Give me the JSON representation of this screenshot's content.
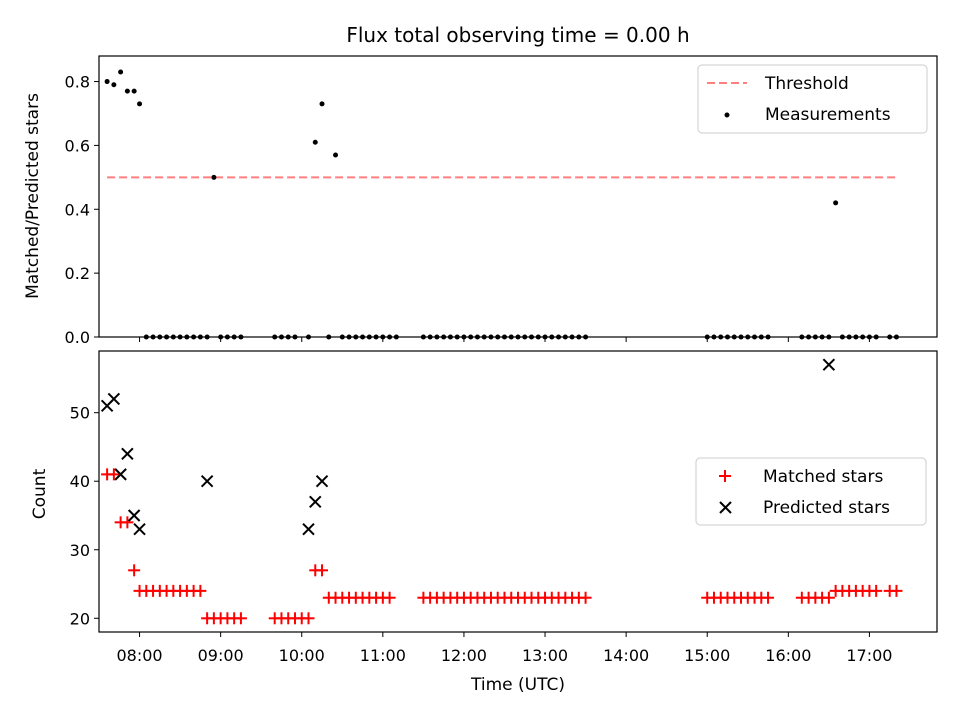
{
  "chart_data": [
    {
      "type": "scatter",
      "title": "Flux total observing time = 0.00 h",
      "xlabel": "",
      "ylabel": "Matched/Predicted stars",
      "xlim": [
        "07:30",
        "17:50"
      ],
      "ylim": [
        0,
        0.88
      ],
      "yticks": [
        "0.0",
        "0.2",
        "0.4",
        "0.6",
        "0.8"
      ],
      "legend_position": "top-right",
      "threshold": {
        "name": "Threshold",
        "value": 0.5,
        "x_start": "07:36",
        "x_end": "17:20",
        "color": "#ff7f7f",
        "style": "dashed"
      },
      "series": [
        {
          "name": "Measurements",
          "color": "#000000",
          "marker": "dot",
          "x": [
            "07:36",
            "07:41",
            "07:46",
            "07:51",
            "07:56",
            "08:00",
            "08:05",
            "08:10",
            "08:15",
            "08:20",
            "08:25",
            "08:30",
            "08:35",
            "08:40",
            "08:45",
            "08:50",
            "08:55",
            "09:00",
            "09:05",
            "09:10",
            "09:15",
            "09:40",
            "09:45",
            "09:50",
            "09:55",
            "10:05",
            "10:10",
            "10:15",
            "10:20",
            "10:25",
            "10:30",
            "10:35",
            "10:40",
            "10:45",
            "10:50",
            "10:55",
            "11:00",
            "11:05",
            "11:10",
            "11:30",
            "11:35",
            "11:40",
            "11:45",
            "11:50",
            "11:55",
            "12:00",
            "12:05",
            "12:10",
            "12:15",
            "12:20",
            "12:25",
            "12:30",
            "12:35",
            "12:40",
            "12:45",
            "12:50",
            "12:55",
            "13:00",
            "13:05",
            "13:10",
            "13:15",
            "13:20",
            "13:25",
            "13:30",
            "15:00",
            "15:05",
            "15:10",
            "15:15",
            "15:20",
            "15:25",
            "15:30",
            "15:35",
            "15:40",
            "15:45",
            "16:10",
            "16:15",
            "16:20",
            "16:25",
            "16:30",
            "16:35",
            "16:40",
            "16:45",
            "16:50",
            "16:55",
            "17:00",
            "17:05",
            "17:15",
            "17:20"
          ],
          "y": [
            0.8,
            0.79,
            0.83,
            0.77,
            0.77,
            0.73,
            0,
            0,
            0,
            0,
            0,
            0,
            0,
            0,
            0,
            0,
            0.5,
            0,
            0,
            0,
            0,
            0,
            0,
            0,
            0,
            0,
            0.61,
            0.73,
            0,
            0.57,
            0,
            0,
            0,
            0,
            0,
            0,
            0,
            0,
            0,
            0,
            0,
            0,
            0,
            0,
            0,
            0,
            0,
            0,
            0,
            0,
            0,
            0,
            0,
            0,
            0,
            0,
            0,
            0,
            0,
            0,
            0,
            0,
            0,
            0,
            0,
            0,
            0,
            0,
            0,
            0,
            0,
            0,
            0,
            0,
            0,
            0,
            0,
            0,
            0,
            0.42,
            0,
            0,
            0,
            0,
            0,
            0,
            0,
            0
          ]
        }
      ]
    },
    {
      "type": "scatter",
      "xlabel": "Time (UTC)",
      "ylabel": "Count",
      "xlim": [
        "07:30",
        "17:50"
      ],
      "ylim": [
        18,
        59
      ],
      "yticks": [
        "20",
        "30",
        "40",
        "50"
      ],
      "xticks": [
        "08:00",
        "09:00",
        "10:00",
        "11:00",
        "12:00",
        "13:00",
        "14:00",
        "15:00",
        "16:00",
        "17:00"
      ],
      "legend_position": "center-right",
      "series": [
        {
          "name": "Matched stars",
          "color": "#ff0000",
          "marker": "plus",
          "x": [
            "07:36",
            "07:41",
            "07:46",
            "07:51",
            "07:56",
            "08:00",
            "08:05",
            "08:10",
            "08:15",
            "08:20",
            "08:25",
            "08:30",
            "08:35",
            "08:40",
            "08:45",
            "08:50",
            "08:55",
            "09:00",
            "09:05",
            "09:10",
            "09:15",
            "09:40",
            "09:45",
            "09:50",
            "09:55",
            "10:00",
            "10:05",
            "10:10",
            "10:15",
            "10:20",
            "10:25",
            "10:30",
            "10:35",
            "10:40",
            "10:45",
            "10:50",
            "10:55",
            "11:00",
            "11:05",
            "11:30",
            "11:35",
            "11:40",
            "11:45",
            "11:50",
            "11:55",
            "12:00",
            "12:05",
            "12:10",
            "12:15",
            "12:20",
            "12:25",
            "12:30",
            "12:35",
            "12:40",
            "12:45",
            "12:50",
            "12:55",
            "13:00",
            "13:05",
            "13:10",
            "13:15",
            "13:20",
            "13:25",
            "13:30",
            "15:00",
            "15:05",
            "15:10",
            "15:15",
            "15:20",
            "15:25",
            "15:30",
            "15:35",
            "15:40",
            "15:45",
            "16:10",
            "16:15",
            "16:20",
            "16:25",
            "16:30",
            "16:35",
            "16:40",
            "16:45",
            "16:50",
            "16:55",
            "17:00",
            "17:05",
            "17:15",
            "17:20"
          ],
          "y": [
            41,
            41,
            34,
            34,
            27,
            24,
            24,
            24,
            24,
            24,
            24,
            24,
            24,
            24,
            24,
            20,
            20,
            20,
            20,
            20,
            20,
            20,
            20,
            20,
            20,
            20,
            20,
            27,
            27,
            23,
            23,
            23,
            23,
            23,
            23,
            23,
            23,
            23,
            23,
            23,
            23,
            23,
            23,
            23,
            23,
            23,
            23,
            23,
            23,
            23,
            23,
            23,
            23,
            23,
            23,
            23,
            23,
            23,
            23,
            23,
            23,
            23,
            23,
            23,
            23,
            23,
            23,
            23,
            23,
            23,
            23,
            23,
            23,
            23,
            23,
            23,
            23,
            23,
            23,
            24,
            24,
            24,
            24,
            24,
            24,
            24,
            24,
            24
          ]
        },
        {
          "name": "Predicted stars",
          "color": "#000000",
          "marker": "x",
          "x": [
            "07:36",
            "07:41",
            "07:46",
            "07:51",
            "07:56",
            "08:00",
            "08:50",
            "10:05",
            "10:10",
            "10:15",
            "16:30"
          ],
          "y": [
            51,
            52,
            41,
            44,
            35,
            33,
            40,
            33,
            37,
            40,
            57
          ]
        }
      ]
    }
  ]
}
